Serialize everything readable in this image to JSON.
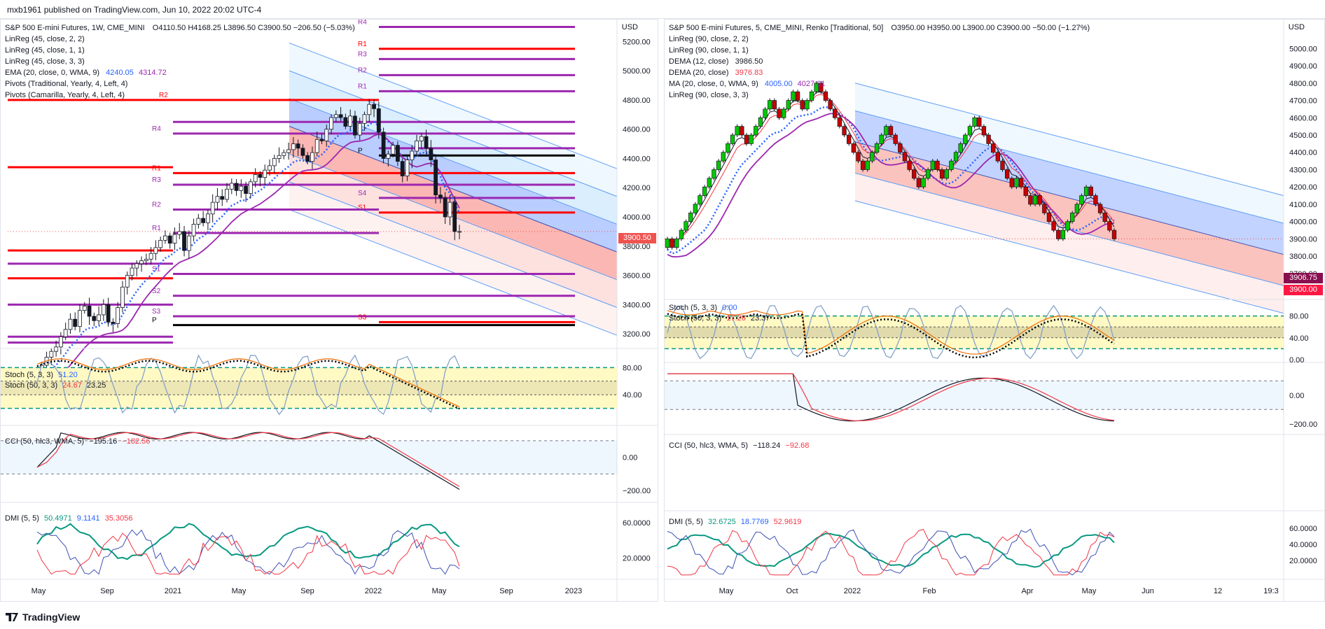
{
  "header": {
    "publisher": "mxb1961 published on TradingView.com, Jun 10, 2022 20:02 UTC-4"
  },
  "footer": {
    "brand": "TradingView"
  },
  "colors": {
    "bull": "#26a69a",
    "bear": "#ef5350",
    "renko_up": "#00c800",
    "renko_down": "#c80000",
    "pivot_red": "#ff0000",
    "pivot_purple": "#9c27b0",
    "ema_blue": "#2962ff",
    "channel_blue": "#5b9cf6",
    "stoch_band": "#fff9c4"
  },
  "left": {
    "title": "S&P 500 E-mini Futures, 1W, CME_MINI",
    "ohlc": "O4110.50  H4168.25  L3896.50  C3900.50  −206.50 (−5.03%)",
    "indicators": [
      {
        "label": "LinReg (45, close, 2, 2)",
        "values": []
      },
      {
        "label": "LinReg (45, close, 1, 1)",
        "values": []
      },
      {
        "label": "LinReg (45, close, 3, 3)",
        "values": []
      },
      {
        "label": "EMA (20, close, 0, WMA, 9)",
        "values": [
          "4240.05",
          "4314.72"
        ]
      },
      {
        "label": "Pivots (Traditional, Yearly, 4, Left, 4)",
        "values": []
      },
      {
        "label": "Pivots (Camarilla, Yearly, 4, Left, 4)",
        "values": []
      }
    ],
    "currency": "USD",
    "price_ticks": [
      "5200.00",
      "5000.00",
      "4800.00",
      "4600.00",
      "4400.00",
      "4200.00",
      "4000.00",
      "3800.00",
      "3600.00",
      "3400.00",
      "3200.00"
    ],
    "last_price_tag": "3900.50",
    "pivot_labels": [
      "R4",
      "R1",
      "R3",
      "R2",
      "R1",
      "R2",
      "R4",
      "P",
      "S4",
      "S1",
      "R1",
      "R3",
      "R2",
      "R1",
      "S1",
      "S2",
      "S3",
      "P",
      "S3"
    ],
    "stoch_label": "Stoch (5, 3, 3)",
    "stoch_value": "51.20",
    "stoch2_label": "Stoch (50, 3, 3)",
    "stoch2_values": [
      "24.67",
      "23.25"
    ],
    "stoch_ticks": [
      "80.00",
      "40.00"
    ],
    "cci_label": "CCI (50, hlc3, WMA, 5)",
    "cci_values": [
      "−195.16",
      "−182.56"
    ],
    "cci_ticks": [
      "0.00",
      "−200.00"
    ],
    "dmi_label": "DMI (5, 5)",
    "dmi_values": [
      "50.4971",
      "9.1141",
      "35.3056"
    ],
    "dmi_ticks": [
      "60.0000",
      "20.0000"
    ],
    "time_labels": [
      "May",
      "Sep",
      "2021",
      "May",
      "Sep",
      "2022",
      "May",
      "Sep",
      "2023"
    ]
  },
  "right": {
    "title": "S&P 500 E-mini Futures, 5, CME_MINI, Renko [Traditional, 50]",
    "ohlc": "O3950.00  H3950.00  L3900.00  C3900.00  −50.00 (−1.27%)",
    "indicators": [
      {
        "label": "LinReg (90, close, 2, 2)",
        "values": []
      },
      {
        "label": "LinReg (90, close, 1, 1)",
        "values": []
      },
      {
        "label": "DEMA (12, close)",
        "values": [
          "3986.50"
        ]
      },
      {
        "label": "DEMA (20, close)",
        "values": [
          "3976.83"
        ]
      },
      {
        "label": "MA (20, close, 0, WMA, 9)",
        "values": [
          "4005.00",
          "4027.61"
        ]
      },
      {
        "label": "LinReg (90, close, 3, 3)",
        "values": []
      }
    ],
    "currency": "USD",
    "price_ticks": [
      "5000.00",
      "4900.00",
      "4800.00",
      "4700.00",
      "4600.00",
      "4500.00",
      "4400.00",
      "4300.00",
      "4200.00",
      "4100.00",
      "4000.00",
      "3900.00",
      "3800.00",
      "3700.00",
      "3600.00"
    ],
    "price_tags": [
      "3906.75",
      "3900.00"
    ],
    "stoch_label": "Stoch (5, 3, 3)",
    "stoch_value": "0.00",
    "stoch2_label": "Stoch (50, 3, 3)",
    "stoch2_values": [
      "17.26",
      "23.37"
    ],
    "stoch_ticks": [
      "80.00",
      "40.00",
      "0.00"
    ],
    "cci_label": "CCI (50, hlc3, WMA, 5)",
    "cci_values": [
      "−118.24",
      "−92.68"
    ],
    "cci_ticks": [
      "0.00",
      "−200.00"
    ],
    "dmi_label": "DMI (5, 5)",
    "dmi_values": [
      "32.6725",
      "18.7769",
      "52.9619"
    ],
    "dmi_ticks": [
      "60.0000",
      "40.0000",
      "20.0000"
    ],
    "time_labels": [
      "May",
      "Oct",
      "2022",
      "Feb",
      "Apr",
      "May",
      "Jun",
      "12",
      "19:3"
    ]
  },
  "chart_data": [
    {
      "type": "candlestick",
      "title": "S&P 500 E-mini Futures, 1W, CME_MINI",
      "ylim": [
        3100,
        5350
      ],
      "x_range": [
        "2020-05",
        "2023-01"
      ],
      "closes": [
        2930,
        2985,
        3040,
        3080,
        3110,
        3180,
        3230,
        3300,
        3250,
        3360,
        3390,
        3320,
        3290,
        3330,
        3400,
        3280,
        3270,
        3380,
        3520,
        3600,
        3650,
        3680,
        3700,
        3710,
        3750,
        3790,
        3840,
        3870,
        3820,
        3880,
        3900,
        3770,
        3870,
        3950,
        3990,
        3960,
        4020,
        4100,
        4140,
        4120,
        4190,
        4230,
        4180,
        4210,
        4160,
        4240,
        4290,
        4270,
        4320,
        4350,
        4400,
        4420,
        4440,
        4460,
        4500,
        4470,
        4420,
        4380,
        4440,
        4530,
        4520,
        4600,
        4680,
        4700,
        4680,
        4620,
        4690,
        4560,
        4640,
        4700,
        4770,
        4740,
        4580,
        4400,
        4430,
        4490,
        4380,
        4280,
        4390,
        4450,
        4520,
        4550,
        4470,
        4390,
        4150,
        4130,
        4000,
        4100,
        3900,
        3900
      ]
    },
    {
      "type": "renko",
      "title": "S&P 500 E-mini Futures, 5, CME_MINI, Renko [Traditional, 50]",
      "box_size": 50,
      "ylim": [
        3550,
        5070
      ],
      "x_range": [
        "2021-04",
        "2022-06"
      ],
      "closes": [
        3900,
        3850,
        3900,
        3950,
        4000,
        4050,
        4100,
        4150,
        4200,
        4250,
        4300,
        4350,
        4400,
        4450,
        4500,
        4550,
        4500,
        4450,
        4500,
        4550,
        4600,
        4650,
        4700,
        4650,
        4600,
        4650,
        4700,
        4750,
        4700,
        4650,
        4700,
        4750,
        4800,
        4750,
        4700,
        4650,
        4600,
        4550,
        4500,
        4450,
        4400,
        4350,
        4300,
        4350,
        4400,
        4450,
        4500,
        4550,
        4500,
        4450,
        4400,
        4350,
        4300,
        4250,
        4200,
        4250,
        4300,
        4350,
        4300,
        4250,
        4300,
        4350,
        4400,
        4450,
        4500,
        4550,
        4600,
        4550,
        4500,
        4450,
        4400,
        4350,
        4300,
        4250,
        4200,
        4250,
        4200,
        4150,
        4100,
        4150,
        4100,
        4050,
        4000,
        3950,
        3900,
        3950,
        4000,
        4050,
        4100,
        4150,
        4200,
        4150,
        4100,
        4050,
        4000,
        3950,
        3900
      ]
    }
  ]
}
